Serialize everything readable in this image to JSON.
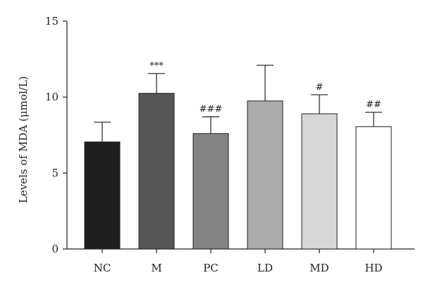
{
  "chart_data": {
    "type": "bar",
    "categories": [
      "NC",
      "M",
      "PC",
      "LD",
      "MD",
      "HD"
    ],
    "values": [
      7.05,
      10.25,
      7.6,
      9.75,
      8.9,
      8.05
    ],
    "errors": [
      1.3,
      1.3,
      1.1,
      2.35,
      1.25,
      0.95
    ],
    "annotations": [
      "",
      "***",
      "###",
      "",
      "#",
      "##"
    ],
    "bar_colors": [
      "#1f1f1f",
      "#565656",
      "#838383",
      "#ababab",
      "#d7d7d7",
      "#ffffff"
    ],
    "ylabel": "Levels of MDA (μmol/L)",
    "xlabel": "",
    "ylim": [
      0,
      15
    ],
    "yticks": [
      "0",
      "5",
      "10",
      "15"
    ],
    "grid": false,
    "legend": "none"
  }
}
